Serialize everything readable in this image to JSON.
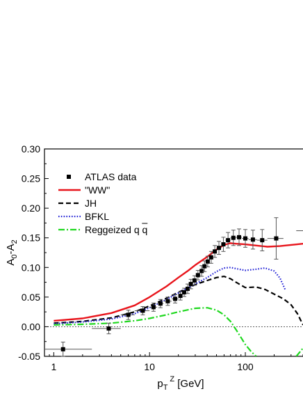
{
  "chart_data": {
    "type": "line",
    "xlabel": {
      "main": "p",
      "sub": "T",
      "sup": "Z",
      "unit": " [GeV]"
    },
    "ylabel": {
      "main": "A",
      "sub1": "0",
      "mid": "-A",
      "sub2": "2"
    },
    "xscale": "log",
    "xlim": [
      0.8,
      400
    ],
    "ylim": [
      -0.05,
      0.3
    ],
    "x_ticks": [
      1,
      10,
      100
    ],
    "x_tick_labels": [
      "1",
      "10",
      "100"
    ],
    "y_ticks": [
      -0.05,
      0.0,
      0.05,
      0.1,
      0.15,
      0.2,
      0.25,
      0.3
    ],
    "y_tick_labels": [
      "-0.05",
      "0.00",
      "0.05",
      "0.10",
      "0.15",
      "0.20",
      "0.25",
      "0.30"
    ],
    "zero_line": true,
    "grid": false,
    "legend_position": "top-left",
    "legend": [
      {
        "label": "ATLAS data",
        "kind": "marker"
      },
      {
        "label": "\"WW\"",
        "kind": "line",
        "color": "#e8141b",
        "dash": "",
        "width": 2.4
      },
      {
        "label": "JH",
        "kind": "line",
        "color": "#000000",
        "dash": "7,4",
        "width": 2.2
      },
      {
        "label": "BFKL",
        "kind": "line",
        "color": "#2424d6",
        "dash": "1.6,2.2",
        "width": 2.2
      },
      {
        "label": "Reggeized q q",
        "kind": "line",
        "color": "#1ed81e",
        "dash": "9,3,2,3",
        "width": 2.2
      }
    ],
    "series": [
      {
        "name": "\"WW\"",
        "color": "#e8141b",
        "dash": "",
        "width": 2.4,
        "x": [
          1,
          2,
          4,
          7,
          10,
          15,
          20,
          25,
          30,
          40,
          50,
          60,
          70,
          80,
          100,
          130,
          170,
          230,
          300,
          400
        ],
        "y": [
          0.01,
          0.014,
          0.023,
          0.036,
          0.05,
          0.068,
          0.083,
          0.094,
          0.104,
          0.118,
          0.13,
          0.138,
          0.141,
          0.14,
          0.139,
          0.137,
          0.135,
          0.136,
          0.138,
          0.14
        ]
      },
      {
        "name": "JH",
        "color": "#000000",
        "dash": "7,4",
        "width": 2.2,
        "x": [
          1,
          2,
          4,
          7,
          10,
          15,
          20,
          30,
          40,
          50,
          60,
          70,
          80,
          100,
          130,
          160,
          200,
          250,
          300,
          350,
          400
        ],
        "y": [
          0.006,
          0.009,
          0.015,
          0.025,
          0.035,
          0.048,
          0.058,
          0.071,
          0.078,
          0.083,
          0.085,
          0.081,
          0.075,
          0.066,
          0.067,
          0.063,
          0.055,
          0.047,
          0.037,
          0.022,
          0.003
        ]
      },
      {
        "name": "BFKL",
        "color": "#2424d6",
        "dash": "1.6,2.2",
        "width": 2.2,
        "x": [
          1,
          2,
          4,
          7,
          10,
          15,
          20,
          30,
          40,
          50,
          60,
          70,
          80,
          100,
          130,
          160,
          200,
          230,
          260
        ],
        "y": [
          0.005,
          0.008,
          0.013,
          0.022,
          0.032,
          0.046,
          0.057,
          0.072,
          0.083,
          0.093,
          0.099,
          0.1,
          0.098,
          0.095,
          0.097,
          0.099,
          0.094,
          0.082,
          0.063
        ]
      },
      {
        "name": "Reggeized q q",
        "color": "#1ed81e",
        "dash": "9,3,2,3",
        "width": 2.2,
        "x": [
          1,
          2,
          4,
          7,
          10,
          15,
          20,
          30,
          40,
          50,
          60,
          70,
          80,
          90,
          100,
          115,
          130
        ],
        "y": [
          0.003,
          0.004,
          0.006,
          0.01,
          0.014,
          0.02,
          0.025,
          0.031,
          0.032,
          0.028,
          0.02,
          0.009,
          -0.005,
          -0.018,
          -0.03,
          -0.042,
          -0.05
        ]
      },
      {
        "name": "Reggeized q q",
        "color": "#1ed81e",
        "dash": "9,3,2,3",
        "width": 2.2,
        "x": [
          340,
          370,
          400
        ],
        "y": [
          -0.05,
          -0.043,
          -0.036
        ]
      }
    ],
    "data_points": [
      {
        "x": 1.25,
        "y": -0.038,
        "xerr": [
          0.5,
          2.5
        ],
        "yerr": 0.012
      },
      {
        "x": 3.75,
        "y": -0.003,
        "xerr": [
          2.5,
          5.0
        ],
        "yerr": 0.009
      },
      {
        "x": 6.0,
        "y": 0.02,
        "xerr": [
          5.0,
          7.0
        ],
        "yerr": 0.008
      },
      {
        "x": 8.5,
        "y": 0.027,
        "xerr": [
          7.0,
          10.0
        ],
        "yerr": 0.007
      },
      {
        "x": 11,
        "y": 0.033,
        "xerr": [
          10,
          12
        ],
        "yerr": 0.007
      },
      {
        "x": 13,
        "y": 0.039,
        "xerr": [
          12,
          14
        ],
        "yerr": 0.007
      },
      {
        "x": 15.5,
        "y": 0.043,
        "xerr": [
          14,
          17
        ],
        "yerr": 0.007
      },
      {
        "x": 18.5,
        "y": 0.047,
        "xerr": [
          17,
          20
        ],
        "yerr": 0.007
      },
      {
        "x": 21,
        "y": 0.052,
        "xerr": [
          20,
          22
        ],
        "yerr": 0.007
      },
      {
        "x": 23,
        "y": 0.058,
        "xerr": [
          22,
          24
        ],
        "yerr": 0.007
      },
      {
        "x": 25,
        "y": 0.064,
        "xerr": [
          24,
          26
        ],
        "yerr": 0.008
      },
      {
        "x": 27,
        "y": 0.072,
        "xerr": [
          26,
          28
        ],
        "yerr": 0.008
      },
      {
        "x": 29.5,
        "y": 0.078,
        "xerr": [
          28,
          31
        ],
        "yerr": 0.008
      },
      {
        "x": 32,
        "y": 0.087,
        "xerr": [
          31,
          34
        ],
        "yerr": 0.008
      },
      {
        "x": 35,
        "y": 0.094,
        "xerr": [
          34,
          36
        ],
        "yerr": 0.009
      },
      {
        "x": 37.5,
        "y": 0.102,
        "xerr": [
          36,
          39
        ],
        "yerr": 0.009
      },
      {
        "x": 40.5,
        "y": 0.11,
        "xerr": [
          39,
          42
        ],
        "yerr": 0.009
      },
      {
        "x": 44,
        "y": 0.117,
        "xerr": [
          42,
          46
        ],
        "yerr": 0.01
      },
      {
        "x": 48,
        "y": 0.127,
        "xerr": [
          46,
          50
        ],
        "yerr": 0.01
      },
      {
        "x": 53,
        "y": 0.133,
        "xerr": [
          50,
          56
        ],
        "yerr": 0.011
      },
      {
        "x": 59,
        "y": 0.139,
        "xerr": [
          56,
          62
        ],
        "yerr": 0.012
      },
      {
        "x": 66,
        "y": 0.146,
        "xerr": [
          62,
          70
        ],
        "yerr": 0.013
      },
      {
        "x": 75,
        "y": 0.15,
        "xerr": [
          70,
          80
        ],
        "yerr": 0.013
      },
      {
        "x": 86,
        "y": 0.151,
        "xerr": [
          80,
          92
        ],
        "yerr": 0.014
      },
      {
        "x": 100,
        "y": 0.149,
        "xerr": [
          92,
          108
        ],
        "yerr": 0.015
      },
      {
        "x": 120,
        "y": 0.147,
        "xerr": [
          108,
          132
        ],
        "yerr": 0.016
      },
      {
        "x": 150,
        "y": 0.146,
        "xerr": [
          132,
          170
        ],
        "yerr": 0.018
      },
      {
        "x": 210,
        "y": 0.149,
        "xerr": [
          170,
          250
        ],
        "yerr": 0.035
      },
      {
        "x": 400,
        "y": 0.162,
        "xerr": [
          340,
          460
        ],
        "yerr": 0.0
      }
    ]
  }
}
